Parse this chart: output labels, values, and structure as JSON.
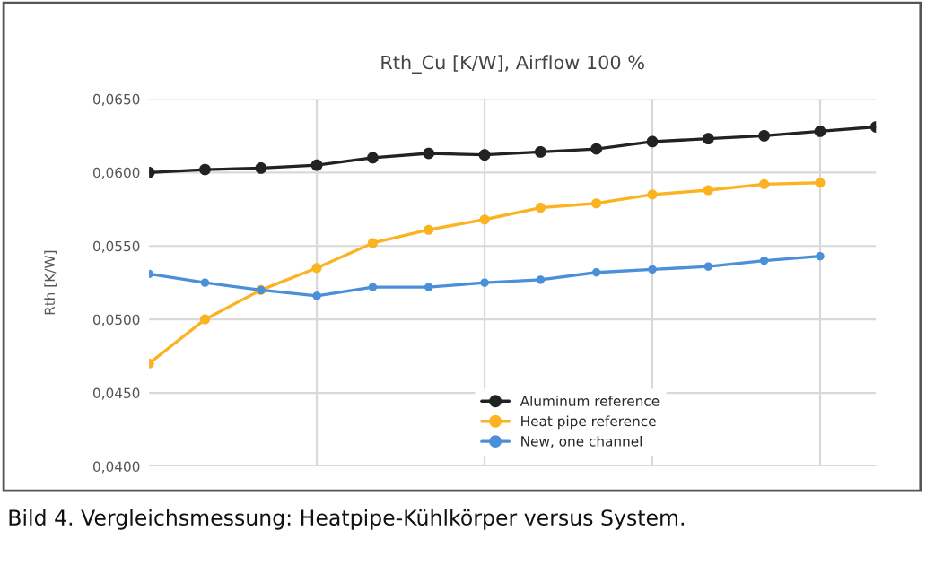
{
  "chart_data": {
    "type": "line",
    "title": "Rth_Cu [K/W], Airflow 100 %",
    "ylabel": "Rth [K/W]",
    "categories": [
      null,
      null,
      null,
      null,
      null,
      null,
      null,
      null,
      null,
      null,
      null,
      null,
      null,
      null
    ],
    "ylim": [
      0.04,
      0.065
    ],
    "yticks": [
      {
        "value": 0.04,
        "label": "0,0400"
      },
      {
        "value": 0.045,
        "label": "0,0450"
      },
      {
        "value": 0.05,
        "label": "0,0500"
      },
      {
        "value": 0.055,
        "label": "0,0550"
      },
      {
        "value": 0.06,
        "label": "0,0600"
      },
      {
        "value": 0.065,
        "label": "0,0650"
      }
    ],
    "tick_labels": "y",
    "grid": true,
    "legend": "bottom",
    "marker": "circle",
    "line_style": "solid",
    "series": [
      {
        "name": "Aluminum reference",
        "color": "#222222",
        "values": [
          0.06,
          0.0602,
          0.0603,
          0.0605,
          0.061,
          0.0613,
          0.0612,
          0.0614,
          0.0616,
          0.0621,
          0.0623,
          0.0625,
          0.0628,
          0.0631
        ]
      },
      {
        "name": "Heat pipe reference",
        "color": "#fbb321",
        "values": [
          0.047,
          0.05,
          0.052,
          0.0535,
          0.0552,
          0.0561,
          0.0568,
          0.0576,
          0.0579,
          0.0585,
          0.0588,
          0.0592,
          0.0593,
          null
        ]
      },
      {
        "name": "New, one channel",
        "color": "#4a8fd9",
        "values": [
          0.0531,
          0.0525,
          0.052,
          0.0516,
          0.0522,
          0.0522,
          0.0525,
          0.0527,
          0.0532,
          0.0534,
          0.0536,
          0.054,
          0.0543,
          null
        ]
      }
    ],
    "annotations": [
      "Bild 4. Vergleichsmessung: Heatpipe-Kühlkörper versus System."
    ]
  }
}
